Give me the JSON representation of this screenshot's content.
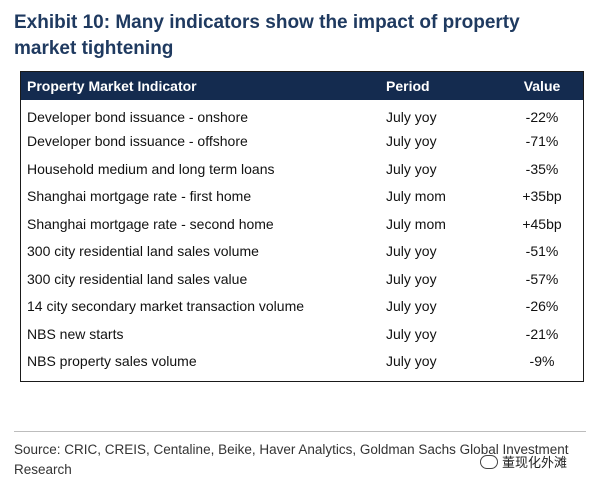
{
  "title": "Exhibit 10: Many indicators show the impact of property market tightening",
  "table": {
    "headers": {
      "indicator": "Property Market Indicator",
      "period": "Period",
      "value": "Value"
    },
    "rows": [
      {
        "indicator": "Developer bond issuance - onshore",
        "period": "July yoy",
        "value": "-22%"
      },
      {
        "indicator": "Developer bond issuance - offshore",
        "period": "July yoy",
        "value": "-71%"
      },
      {
        "indicator": "Household medium and long term loans",
        "period": "July yoy",
        "value": "-35%"
      },
      {
        "indicator": "Shanghai mortgage rate - first home",
        "period": "July mom",
        "value": "+35bp"
      },
      {
        "indicator": "Shanghai mortgage rate - second home",
        "period": "July mom",
        "value": "+45bp"
      },
      {
        "indicator": "300 city residential land sales volume",
        "period": "July yoy",
        "value": "-51%"
      },
      {
        "indicator": "300 city residential land sales value",
        "period": "July yoy",
        "value": "-57%"
      },
      {
        "indicator": "14 city secondary market transaction volume",
        "period": "July yoy",
        "value": "-26%"
      },
      {
        "indicator": "NBS new starts",
        "period": "July yoy",
        "value": "-21%"
      },
      {
        "indicator": "NBS property sales volume",
        "period": "July yoy",
        "value": "-9%"
      }
    ]
  },
  "source": "Source: CRIC, CREIS, Centaline, Beike, Haver Analytics, Goldman Sachs Global Investment Research",
  "watermark": "董现化外滩",
  "colors": {
    "title": "#1f3a60",
    "header_bg": "#142b4f",
    "header_text": "#ffffff"
  }
}
